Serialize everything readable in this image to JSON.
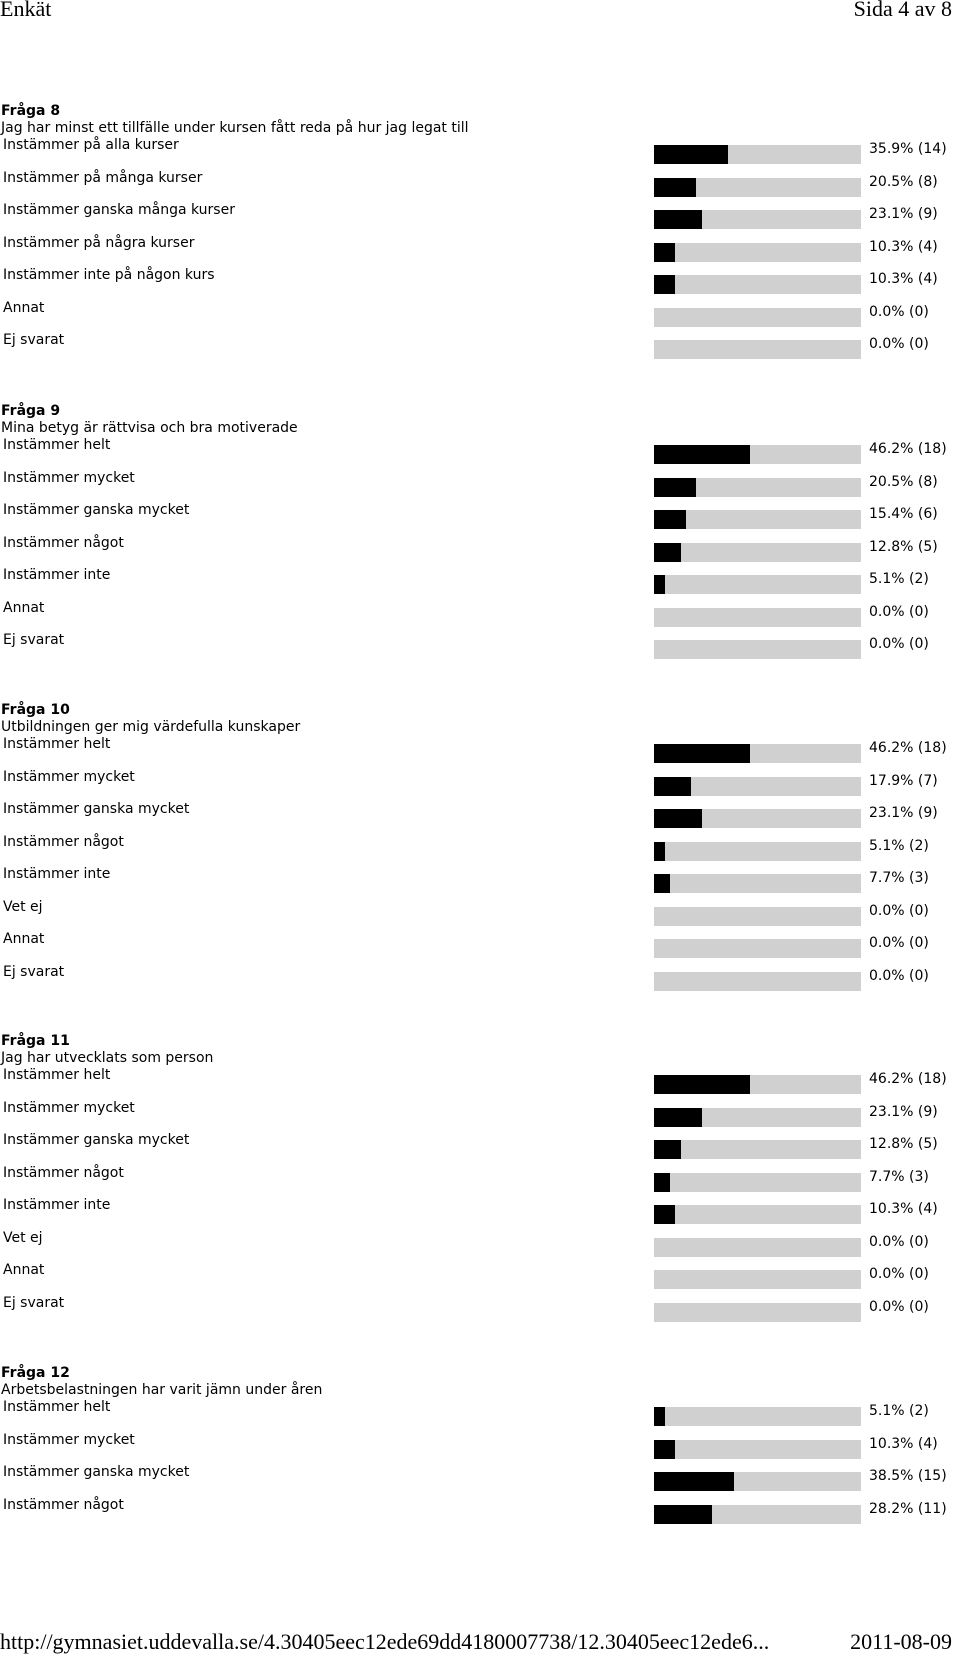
{
  "header": {
    "title": "Enkät",
    "page": "Sida 4 av 8"
  },
  "footer": {
    "url": "http://gymnasiet.uddevalla.se/4.30405eec12ede69dd4180007738/12.30405eec12ede6...",
    "date": "2011-08-09"
  },
  "questions": [
    {
      "title": "Fråga 8",
      "text": "Jag har minst ett tillfälle under kursen fått reda på hur jag legat till",
      "rows": [
        {
          "label": "Instämmer på alla kurser",
          "pct": 35.9,
          "value": "35.9% (14)"
        },
        {
          "label": "Instämmer på många kurser",
          "pct": 20.5,
          "value": "20.5% (8)"
        },
        {
          "label": "Instämmer ganska många kurser",
          "pct": 23.1,
          "value": "23.1% (9)"
        },
        {
          "label": "Instämmer på några kurser",
          "pct": 10.3,
          "value": "10.3% (4)"
        },
        {
          "label": "Instämmer inte på någon kurs",
          "pct": 10.3,
          "value": "10.3% (4)"
        },
        {
          "label": "Annat",
          "pct": 0,
          "value": "0.0% (0)"
        },
        {
          "label": "Ej svarat",
          "pct": 0,
          "value": "0.0% (0)"
        }
      ]
    },
    {
      "title": "Fråga 9",
      "text": "Mina betyg är rättvisa och bra motiverade",
      "rows": [
        {
          "label": "Instämmer helt",
          "pct": 46.2,
          "value": "46.2% (18)"
        },
        {
          "label": "Instämmer mycket",
          "pct": 20.5,
          "value": "20.5% (8)"
        },
        {
          "label": "Instämmer ganska mycket",
          "pct": 15.4,
          "value": "15.4% (6)"
        },
        {
          "label": "Instämmer något",
          "pct": 12.8,
          "value": "12.8% (5)"
        },
        {
          "label": "Instämmer inte",
          "pct": 5.1,
          "value": "5.1% (2)"
        },
        {
          "label": "Annat",
          "pct": 0,
          "value": "0.0% (0)"
        },
        {
          "label": "Ej svarat",
          "pct": 0,
          "value": "0.0% (0)"
        }
      ]
    },
    {
      "title": "Fråga 10",
      "text": "Utbildningen ger mig värdefulla kunskaper",
      "rows": [
        {
          "label": "Instämmer helt",
          "pct": 46.2,
          "value": "46.2% (18)"
        },
        {
          "label": "Instämmer mycket",
          "pct": 17.9,
          "value": "17.9% (7)"
        },
        {
          "label": "Instämmer ganska mycket",
          "pct": 23.1,
          "value": "23.1% (9)"
        },
        {
          "label": "Instämmer något",
          "pct": 5.1,
          "value": "5.1% (2)"
        },
        {
          "label": "Instämmer inte",
          "pct": 7.7,
          "value": "7.7% (3)"
        },
        {
          "label": "Vet ej",
          "pct": 0,
          "value": "0.0% (0)"
        },
        {
          "label": "Annat",
          "pct": 0,
          "value": "0.0% (0)"
        },
        {
          "label": "Ej svarat",
          "pct": 0,
          "value": "0.0% (0)"
        }
      ]
    },
    {
      "title": "Fråga 11",
      "text": "Jag har utvecklats som person",
      "rows": [
        {
          "label": "Instämmer helt",
          "pct": 46.2,
          "value": "46.2% (18)"
        },
        {
          "label": "Instämmer mycket",
          "pct": 23.1,
          "value": "23.1% (9)"
        },
        {
          "label": "Instämmer ganska mycket",
          "pct": 12.8,
          "value": "12.8% (5)"
        },
        {
          "label": "Instämmer något",
          "pct": 7.7,
          "value": "7.7% (3)"
        },
        {
          "label": "Instämmer inte",
          "pct": 10.3,
          "value": "10.3% (4)"
        },
        {
          "label": "Vet ej",
          "pct": 0,
          "value": "0.0% (0)"
        },
        {
          "label": "Annat",
          "pct": 0,
          "value": "0.0% (0)"
        },
        {
          "label": "Ej svarat",
          "pct": 0,
          "value": "0.0% (0)"
        }
      ]
    },
    {
      "title": "Fråga 12",
      "text": "Arbetsbelastningen har varit jämn under åren",
      "rows": [
        {
          "label": "Instämmer helt",
          "pct": 5.1,
          "value": "5.1% (2)"
        },
        {
          "label": "Instämmer mycket",
          "pct": 10.3,
          "value": "10.3% (4)"
        },
        {
          "label": "Instämmer ganska mycket",
          "pct": 38.5,
          "value": "38.5% (15)"
        },
        {
          "label": "Instämmer något",
          "pct": 28.2,
          "value": "28.2% (11)"
        }
      ]
    }
  ]
}
